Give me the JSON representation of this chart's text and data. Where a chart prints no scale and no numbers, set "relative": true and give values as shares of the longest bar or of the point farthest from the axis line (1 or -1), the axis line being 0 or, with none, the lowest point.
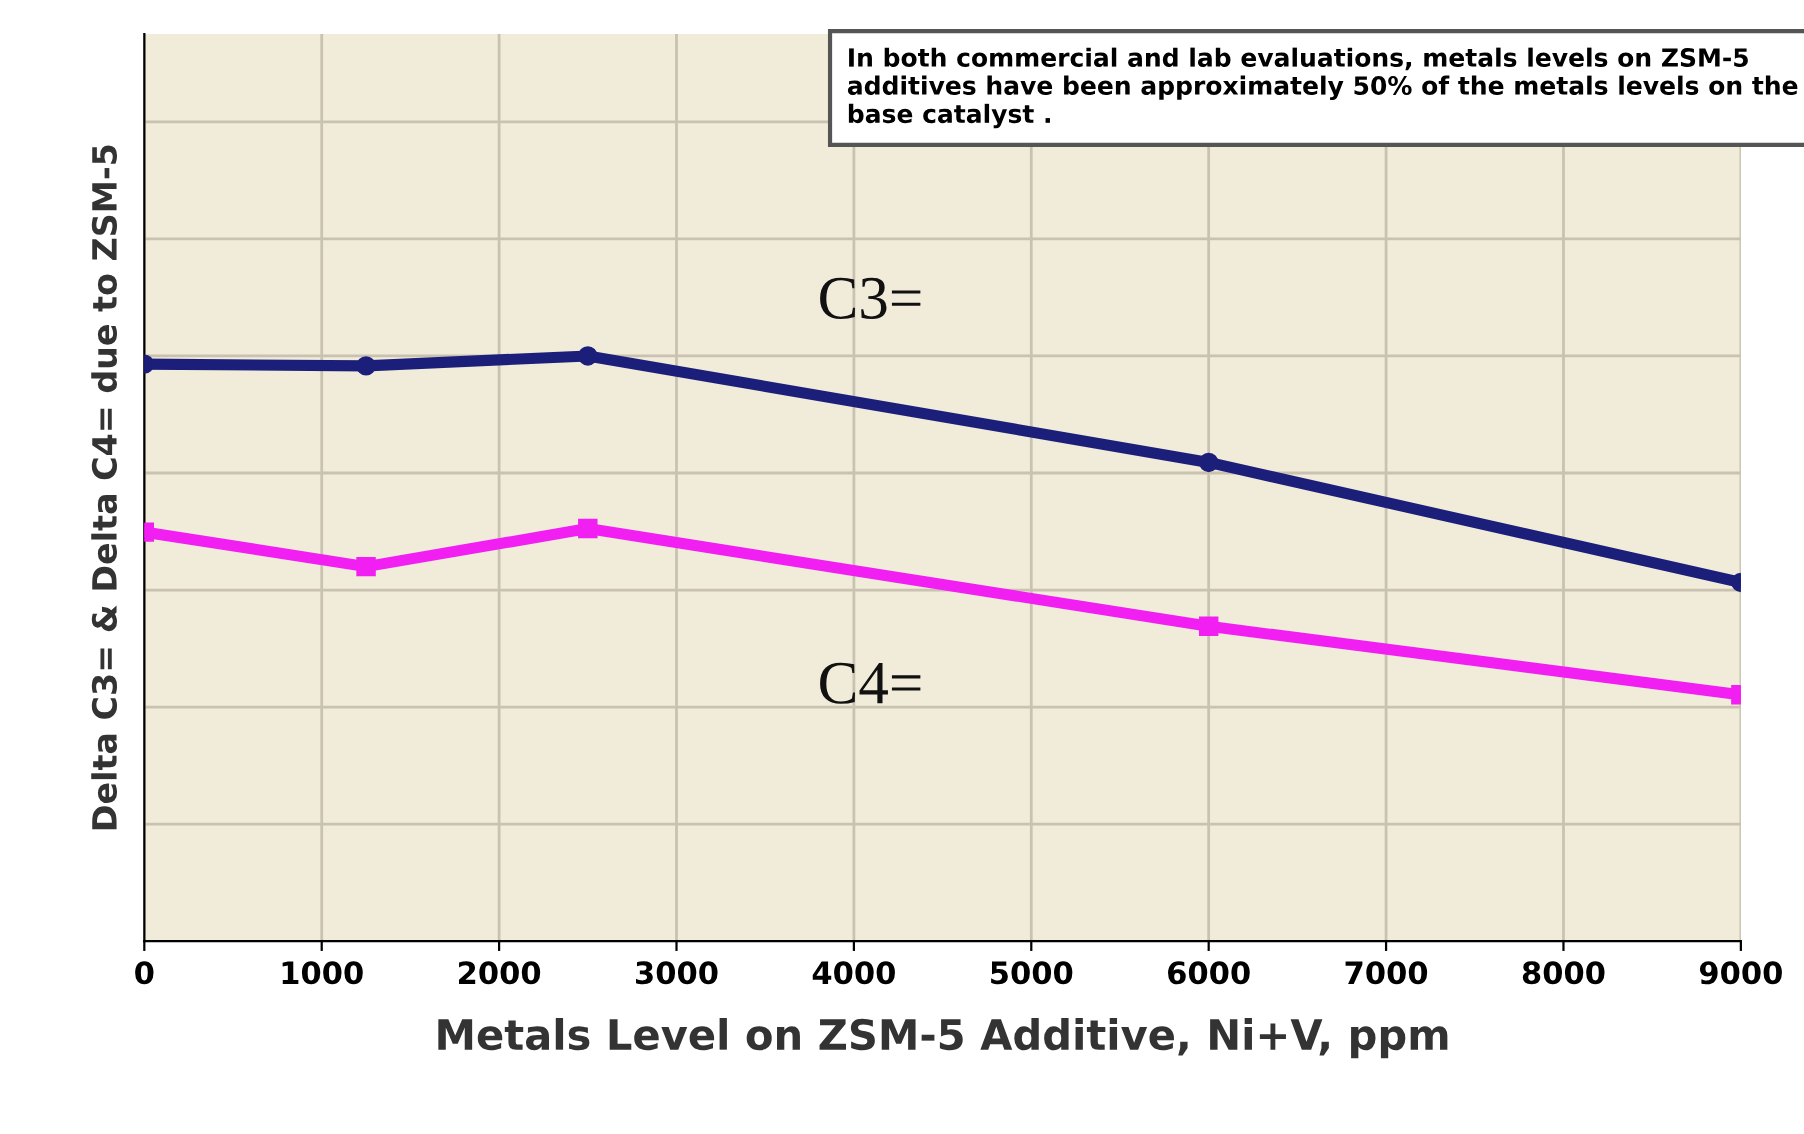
{
  "chart_data": {
    "type": "line",
    "relative": true,
    "xlabel": "Metals Level on ZSM-5 Additive, Ni+V, ppm",
    "ylabel": "Delta C3= & Delta C4= due to ZSM-5",
    "x": [
      0,
      1250,
      2500,
      6000,
      9000
    ],
    "xlim": [
      0,
      9000
    ],
    "xticks": [
      0,
      1000,
      2000,
      3000,
      4000,
      5000,
      6000,
      7000,
      8000,
      9000
    ],
    "series": [
      {
        "name": "C3=",
        "color": "#1c1f7a",
        "marker": "circle",
        "values": [
          0.986,
          0.983,
          1.0,
          0.818,
          0.613
        ]
      },
      {
        "name": "C4=",
        "color": "#f21ff2",
        "marker": "square",
        "values": [
          0.699,
          0.64,
          0.705,
          0.538,
          0.421
        ]
      }
    ],
    "annotations": [
      "In both commercial and lab evaluations, metals levels on ZSM-5 additives have been approximately 50% of the metals levels on the base catalyst ."
    ],
    "grid": true,
    "line_style": "solid"
  }
}
